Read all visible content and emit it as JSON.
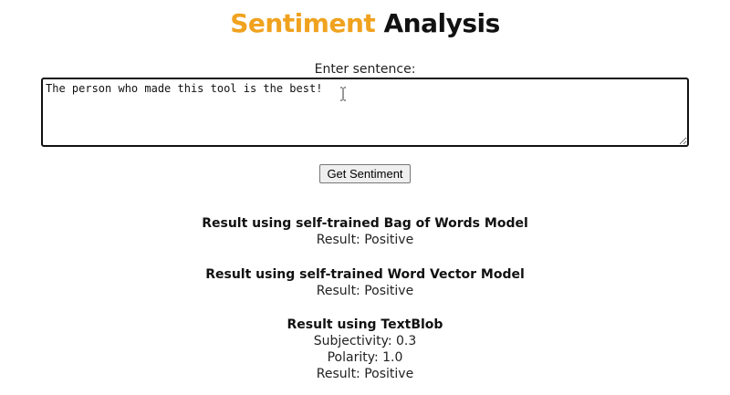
{
  "header": {
    "title_accent": "Sentiment",
    "title_rest": "Analysis",
    "accent_color": "#f0a21f"
  },
  "form": {
    "input_label": "Enter sentence:",
    "input_value": "The person who made this tool is the best!",
    "submit_label": "Get Sentiment"
  },
  "results": {
    "bag_of_words": {
      "heading": "Result using self-trained Bag of Words Model",
      "result": "Result: Positive"
    },
    "word_vector": {
      "heading": "Result using self-trained Word Vector Model",
      "result": "Result: Positive"
    },
    "textblob": {
      "heading": "Result using TextBlob",
      "subjectivity": "Subjectivity: 0.3",
      "polarity": "Polarity: 1.0",
      "result": "Result: Positive"
    }
  },
  "icons": {
    "cursor": "text-cursor-icon"
  }
}
